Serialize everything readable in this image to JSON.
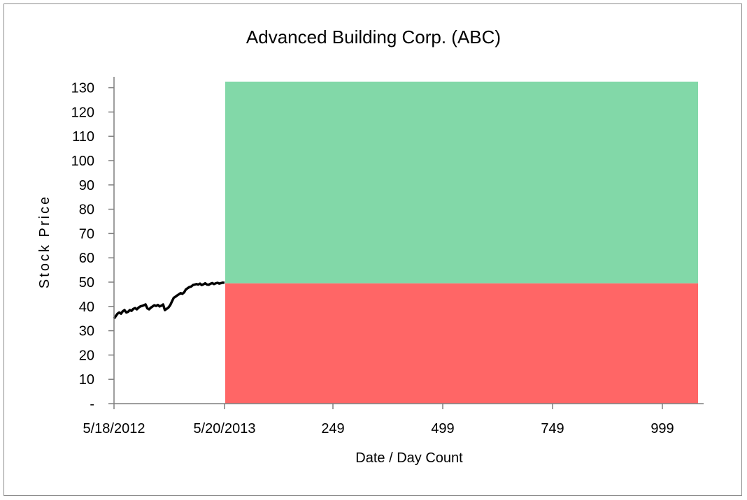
{
  "chart_data": {
    "type": "line",
    "title": "Advanced Building Corp. (ABC)",
    "xlabel": "Date / Day Count",
    "ylabel": "Stock Price",
    "ylim": [
      0,
      130
    ],
    "yticks": [
      "-",
      "10",
      "20",
      "30",
      "40",
      "50",
      "60",
      "70",
      "80",
      "90",
      "100",
      "110",
      "120",
      "130"
    ],
    "xticks": [
      "5/18/2012",
      "5/20/2013",
      "249",
      "499",
      "749",
      "999"
    ],
    "grid": false,
    "legend": "none",
    "series": [
      {
        "color": "#000000",
        "x": [
          0,
          4,
          8,
          12,
          16,
          20,
          24,
          28,
          32,
          36,
          40,
          44,
          48,
          52,
          56,
          60,
          64,
          68,
          72,
          76,
          80,
          84,
          88,
          92,
          96,
          100,
          104,
          108,
          112,
          116,
          120,
          124,
          128,
          132,
          136,
          140,
          144,
          148,
          152,
          156,
          160,
          164,
          168,
          172,
          176,
          180,
          184,
          188,
          192,
          196,
          200,
          204,
          208,
          212,
          216,
          220,
          224,
          228,
          232,
          236,
          240,
          244,
          248,
          252
        ],
        "y": [
          35,
          36,
          37,
          37.5,
          37,
          38,
          38.5,
          37.5,
          37.8,
          38.5,
          38.2,
          39,
          39.3,
          38.8,
          39.5,
          40,
          40.2,
          40.5,
          40.8,
          39.2,
          38.8,
          39.5,
          40,
          40.5,
          40.2,
          40.6,
          40,
          40.3,
          40.8,
          38.5,
          39,
          39.5,
          40.5,
          42,
          43.5,
          44,
          44.5,
          45,
          45.5,
          45.2,
          45.8,
          47,
          47.5,
          48,
          48.2,
          48.8,
          49,
          49.2,
          49,
          49.4,
          48.8,
          49.1,
          49.5,
          49,
          48.9,
          49.3,
          49.6,
          49.2,
          49.5,
          49.7,
          49.4,
          49.6,
          49.8,
          49.7
        ]
      }
    ],
    "regions": [
      {
        "name": "upper zone",
        "y_from": 49.5,
        "y_to": 132.5,
        "color": "#82d8a8"
      },
      {
        "name": "lower zone",
        "y_from": 0,
        "y_to": 49.5,
        "color": "#ff6666"
      }
    ]
  }
}
